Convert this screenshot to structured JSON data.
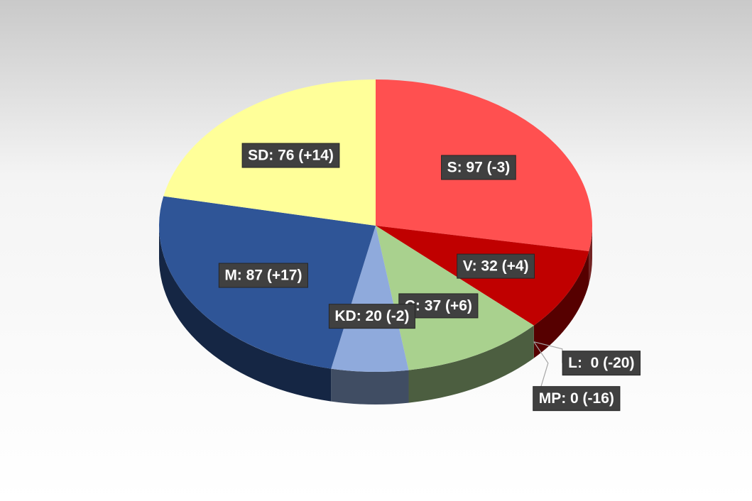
{
  "chart_data": {
    "type": "pie",
    "categories": [
      "S",
      "V",
      "L",
      "MP",
      "C",
      "KD",
      "M",
      "SD"
    ],
    "values": [
      97,
      32,
      0,
      0,
      37,
      20,
      87,
      76
    ],
    "value_labels": [
      "S: 97 (-3)",
      "V: 32 (+4)",
      "L:  0 (-20)",
      "MP: 0 (-16)",
      "C: 37 (+6)",
      "KD: 20 (-2)",
      "M: 87 (+17)",
      "SD: 76 (+14)"
    ],
    "colors": [
      "#ff5050",
      "#c00000",
      null,
      null,
      "#a9d18e",
      "#8faadc",
      "#2f5597",
      "#ffff99"
    ]
  }
}
